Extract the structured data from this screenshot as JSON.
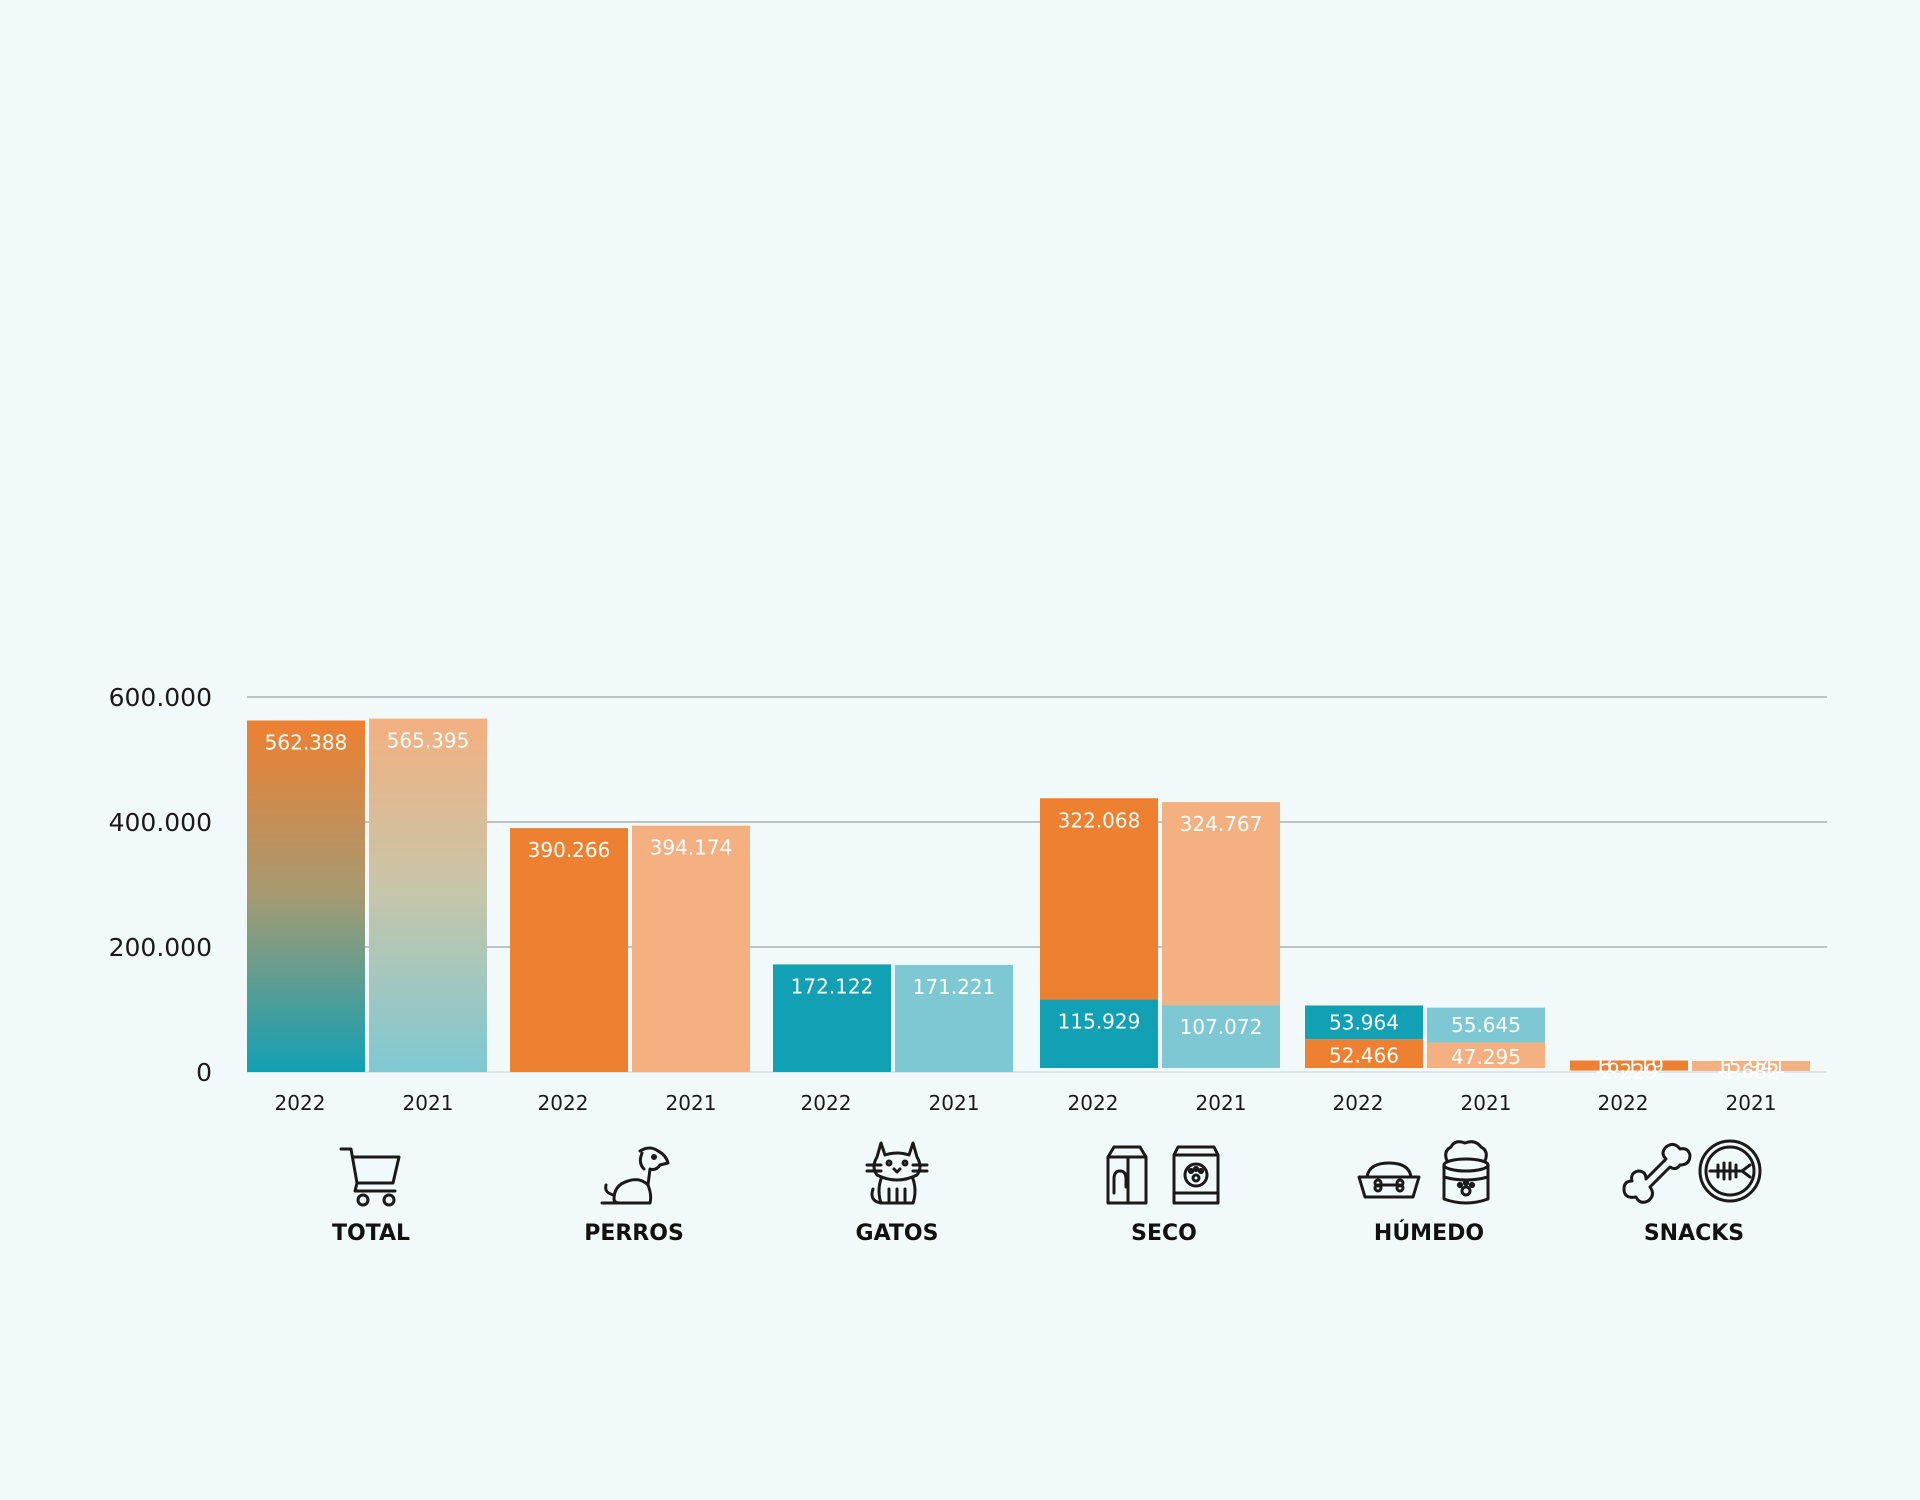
{
  "chart_data": {
    "type": "bar",
    "stacked": true,
    "ylim": [
      0,
      600000
    ],
    "yticks": [
      {
        "value": 0,
        "label": "0"
      },
      {
        "value": 200000,
        "label": "200.000"
      },
      {
        "value": 400000,
        "label": "400.000"
      },
      {
        "value": 600000,
        "label": "600.000"
      }
    ],
    "grid": true,
    "colors": {
      "orange_2022": "#ee8031",
      "orange_2021": "#f4b080",
      "teal_2022": "#11a0b4",
      "teal_2021": "#7ec8d3"
    },
    "groups": [
      {
        "category": "TOTAL",
        "icons": [
          "shopping-cart-icon"
        ],
        "bars": [
          {
            "year": "2022",
            "segments": [
              {
                "value": 562388,
                "label": "562.388",
                "color": "gradient-2022"
              }
            ]
          },
          {
            "year": "2021",
            "segments": [
              {
                "value": 565395,
                "label": "565.395",
                "color": "gradient-2021"
              }
            ]
          }
        ]
      },
      {
        "category": "PERROS",
        "icons": [
          "dog-icon"
        ],
        "bars": [
          {
            "year": "2022",
            "segments": [
              {
                "value": 390266,
                "label": "390.266",
                "color": "#ee8031"
              }
            ]
          },
          {
            "year": "2021",
            "segments": [
              {
                "value": 394174,
                "label": "394.174",
                "color": "#f4b080"
              }
            ]
          }
        ]
      },
      {
        "category": "GATOS",
        "icons": [
          "cat-icon"
        ],
        "bars": [
          {
            "year": "2022",
            "segments": [
              {
                "value": 172122,
                "label": "172.122",
                "color": "#11a0b4"
              }
            ]
          },
          {
            "year": "2021",
            "segments": [
              {
                "value": 171221,
                "label": "171.221",
                "color": "#7ec8d3"
              }
            ]
          }
        ]
      },
      {
        "category": "SECO",
        "icons": [
          "dry-food-bag-icon",
          "pet-food-bag-icon"
        ],
        "bars": [
          {
            "year": "2022",
            "segments": [
              {
                "value": 115929,
                "label": "115.929",
                "color": "#11a0b4"
              },
              {
                "value": 322068,
                "label": "322.068",
                "color": "#ee8031"
              }
            ]
          },
          {
            "year": "2021",
            "segments": [
              {
                "value": 107072,
                "label": "107.072",
                "color": "#7ec8d3"
              },
              {
                "value": 324767,
                "label": "324.767",
                "color": "#f4b080"
              }
            ]
          }
        ]
      },
      {
        "category": "HÚMEDO",
        "icons": [
          "food-bowl-icon",
          "wet-food-can-icon"
        ],
        "bars": [
          {
            "year": "2022",
            "segments": [
              {
                "value": 52466,
                "label": "52.466",
                "color": "#ee8031"
              },
              {
                "value": 53964,
                "label": "53.964",
                "color": "#11a0b4"
              }
            ]
          },
          {
            "year": "2021",
            "segments": [
              {
                "value": 47295,
                "label": "47.295",
                "color": "#f4b080"
              },
              {
                "value": 55645,
                "label": "55.645",
                "color": "#7ec8d3"
              }
            ]
          }
        ]
      },
      {
        "category": "SNACKS",
        "icons": [
          "bone-icon",
          "fish-treat-icon"
        ],
        "bars": [
          {
            "year": "2022",
            "segments": [
              {
                "value": 2229,
                "label": "2.229",
                "color": "#11a0b4"
              },
              {
                "value": 16119,
                "label": "16.119",
                "color": "#ee8031"
              }
            ]
          },
          {
            "year": "2021",
            "segments": [
              {
                "value": 1682,
                "label": "1.682",
                "color": "#7ec8d3"
              },
              {
                "value": 15941,
                "label": "15.941",
                "color": "#f4b080"
              }
            ]
          }
        ]
      }
    ]
  }
}
